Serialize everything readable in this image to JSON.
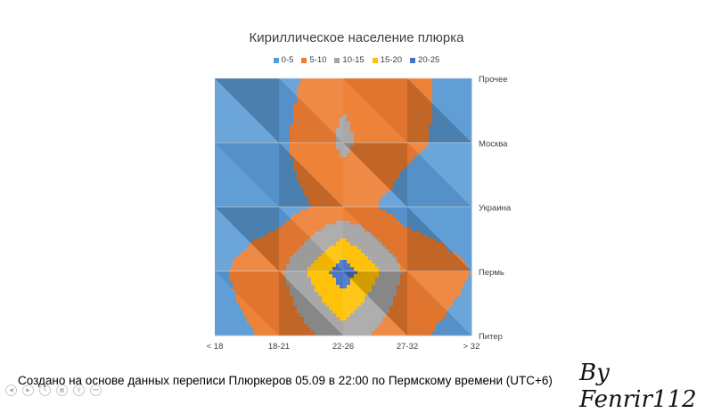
{
  "chart_data": {
    "type": "heatmap",
    "subtype": "3d-surface-contour",
    "title": "Кириллическое население плюрка",
    "legend": [
      {
        "label": "0-5",
        "color": "#5b9bd5"
      },
      {
        "label": "5-10",
        "color": "#ed7d31"
      },
      {
        "label": "10-15",
        "color": "#a5a5a5"
      },
      {
        "label": "15-20",
        "color": "#ffc000"
      },
      {
        "label": "20-25",
        "color": "#4472c4"
      }
    ],
    "legend_position": "top",
    "x_categories": [
      "< 18",
      "18-21",
      "22-26",
      "27-32",
      "> 32"
    ],
    "y_categories": [
      "Прочее",
      "Москва",
      "Украина",
      "Пермь",
      "Питер"
    ],
    "grid": [
      [
        2,
        3,
        9,
        7,
        2
      ],
      [
        2,
        4,
        11,
        6,
        3
      ],
      [
        2,
        3,
        7,
        3,
        2
      ],
      [
        4,
        9,
        23,
        9,
        5
      ],
      [
        3,
        6,
        13,
        6,
        3
      ]
    ],
    "series_ranges": [
      [
        0,
        5
      ],
      [
        5,
        10
      ],
      [
        10,
        15
      ],
      [
        15,
        20
      ],
      [
        20,
        25
      ]
    ]
  },
  "footer": {
    "caption": "Создано на основе данных переписи Плюркеров 05.09 в 22:00 по Пермскому времени (UTC+6)",
    "signature": "By Fenrir112"
  }
}
